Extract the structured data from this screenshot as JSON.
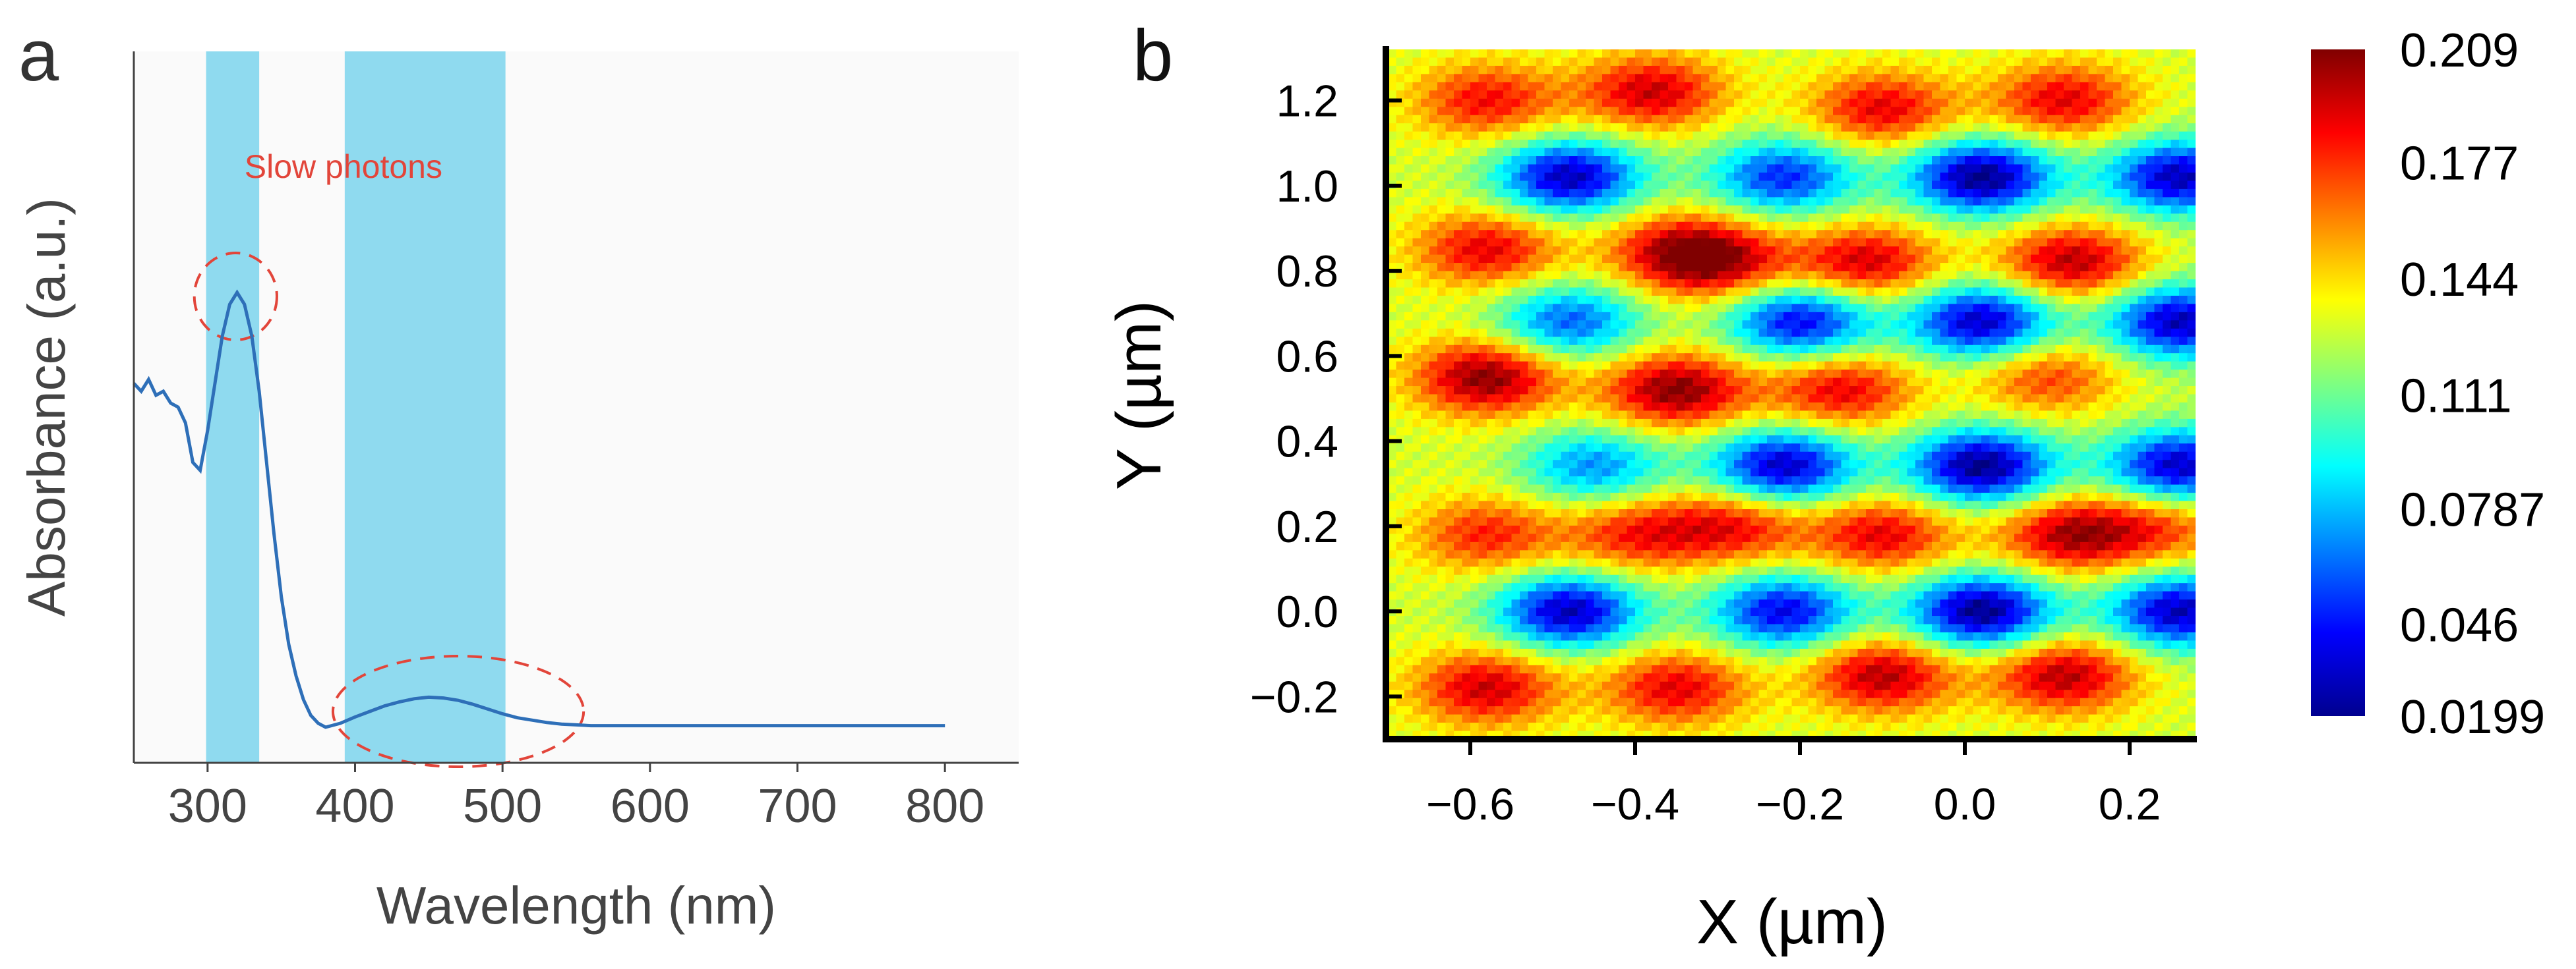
{
  "figure": {
    "panel_a_label": "a",
    "panel_b_label": "b"
  },
  "chart_data": [
    {
      "type": "line",
      "panel": "a",
      "title": "",
      "xlabel": "Wavelength (nm)",
      "ylabel": "Absorbance (a.u.)",
      "xlim": [
        250,
        850
      ],
      "ylim": [
        0.1,
        1.0
      ],
      "xticks": [
        "300",
        "400",
        "500",
        "600",
        "700",
        "800"
      ],
      "yticks_shown": false,
      "series": [
        {
          "name": "Absorbance",
          "color": "#2e6fb8",
          "x": [
            250,
            255,
            260,
            265,
            270,
            275,
            280,
            285,
            290,
            295,
            300,
            305,
            310,
            315,
            320,
            325,
            330,
            335,
            340,
            345,
            350,
            355,
            360,
            365,
            370,
            375,
            380,
            390,
            400,
            410,
            420,
            430,
            440,
            450,
            460,
            470,
            480,
            490,
            500,
            510,
            520,
            530,
            540,
            550,
            560,
            580,
            600,
            650,
            700,
            750,
            800
          ],
          "y": [
            0.58,
            0.57,
            0.585,
            0.565,
            0.57,
            0.555,
            0.55,
            0.53,
            0.48,
            0.47,
            0.52,
            0.58,
            0.64,
            0.68,
            0.695,
            0.68,
            0.64,
            0.57,
            0.48,
            0.39,
            0.31,
            0.25,
            0.21,
            0.18,
            0.16,
            0.15,
            0.145,
            0.15,
            0.158,
            0.165,
            0.172,
            0.177,
            0.181,
            0.183,
            0.182,
            0.179,
            0.174,
            0.168,
            0.162,
            0.157,
            0.154,
            0.151,
            0.149,
            0.148,
            0.147,
            0.147,
            0.147,
            0.147,
            0.147,
            0.147,
            0.147
          ]
        }
      ],
      "shaded_bands": [
        {
          "x_start": 299,
          "x_end": 335,
          "color": "#8fdaef"
        },
        {
          "x_start": 393,
          "x_end": 502,
          "color": "#8fdaef"
        }
      ],
      "annotations": [
        {
          "text": "Slow photons",
          "x": 325,
          "y": 0.84,
          "color": "#e2453a"
        },
        {
          "shape": "dashed-ellipse",
          "center_x": 319,
          "center_y": 0.69,
          "radius_x": 28,
          "radius_y": 0.055,
          "color": "#e2453a"
        },
        {
          "shape": "dashed-ellipse",
          "center_x": 470,
          "center_y": 0.165,
          "radius_x": 85,
          "radius_y": 0.07,
          "color": "#e2453a"
        }
      ]
    },
    {
      "type": "heatmap",
      "panel": "b",
      "title": "",
      "xlabel": "X (µm)",
      "ylabel": "Y (µm)",
      "xlim": [
        -0.7,
        0.28
      ],
      "ylim": [
        -0.3,
        1.32
      ],
      "xticks": [
        "-0.6",
        "-0.4",
        "-0.2",
        "0.0",
        "0.2"
      ],
      "yticks": [
        "-0.2",
        "0.0",
        "0.2",
        "0.4",
        "0.6",
        "0.8",
        "1.0",
        "1.2"
      ],
      "colorbar": {
        "min": 0.0199,
        "max": 0.209,
        "tick_values": [
          0.209,
          0.177,
          0.144,
          0.111,
          0.0787,
          0.046,
          0.0199
        ],
        "tick_labels": [
          "0.209",
          "0.177",
          "0.144",
          "0.111",
          "0.0787",
          "0.046",
          "0.0199"
        ],
        "colormap": "jet"
      },
      "background_level": 0.13,
      "blobs": [
        {
          "x": -0.58,
          "y": 0.55,
          "v": 0.209
        },
        {
          "x": -0.35,
          "y": 0.52,
          "v": 0.209
        },
        {
          "x": -0.12,
          "y": 0.82,
          "v": 0.195
        },
        {
          "x": -0.1,
          "y": 1.18,
          "v": 0.19
        },
        {
          "x": -0.1,
          "y": 0.18,
          "v": 0.19
        },
        {
          "x": -0.1,
          "y": -0.15,
          "v": 0.2
        },
        {
          "x": -0.58,
          "y": 1.2,
          "v": 0.185
        },
        {
          "x": -0.38,
          "y": 1.22,
          "v": 0.195
        },
        {
          "x": -0.58,
          "y": 0.85,
          "v": 0.19
        },
        {
          "x": -0.58,
          "y": -0.18,
          "v": 0.195
        },
        {
          "x": -0.35,
          "y": -0.18,
          "v": 0.19
        },
        {
          "x": -0.58,
          "y": 0.18,
          "v": 0.18
        },
        {
          "x": -0.4,
          "y": 0.18,
          "v": 0.18
        },
        {
          "x": -0.35,
          "y": 0.85,
          "v": 0.18
        },
        {
          "x": -0.3,
          "y": 0.82,
          "v": 0.19
        },
        {
          "x": -0.28,
          "y": 0.2,
          "v": 0.185
        },
        {
          "x": -0.15,
          "y": 0.52,
          "v": 0.19
        },
        {
          "x": 0.1,
          "y": 0.55,
          "v": 0.175
        },
        {
          "x": 0.12,
          "y": 1.2,
          "v": 0.19
        },
        {
          "x": 0.13,
          "y": 0.82,
          "v": 0.2
        },
        {
          "x": 0.13,
          "y": 0.18,
          "v": 0.2
        },
        {
          "x": 0.12,
          "y": -0.15,
          "v": 0.2
        },
        {
          "x": 0.24,
          "y": 0.2,
          "v": 0.17
        },
        {
          "x": -0.48,
          "y": 1.02,
          "v": 0.03
        },
        {
          "x": -0.48,
          "y": 0.68,
          "v": 0.06
        },
        {
          "x": -0.48,
          "y": 0.0,
          "v": 0.03
        },
        {
          "x": -0.45,
          "y": 0.34,
          "v": 0.07
        },
        {
          "x": -0.22,
          "y": 1.02,
          "v": 0.05
        },
        {
          "x": -0.2,
          "y": 0.68,
          "v": 0.04
        },
        {
          "x": -0.22,
          "y": 0.34,
          "v": 0.03
        },
        {
          "x": -0.22,
          "y": 0.0,
          "v": 0.04
        },
        {
          "x": 0.02,
          "y": 1.02,
          "v": 0.02
        },
        {
          "x": 0.02,
          "y": 0.68,
          "v": 0.03
        },
        {
          "x": 0.02,
          "y": 0.34,
          "v": 0.02
        },
        {
          "x": 0.02,
          "y": 0.0,
          "v": 0.02
        },
        {
          "x": 0.26,
          "y": 1.02,
          "v": 0.03
        },
        {
          "x": 0.26,
          "y": 0.68,
          "v": 0.03
        },
        {
          "x": 0.26,
          "y": 0.34,
          "v": 0.03
        },
        {
          "x": 0.26,
          "y": 0.0,
          "v": 0.03
        }
      ]
    }
  ]
}
